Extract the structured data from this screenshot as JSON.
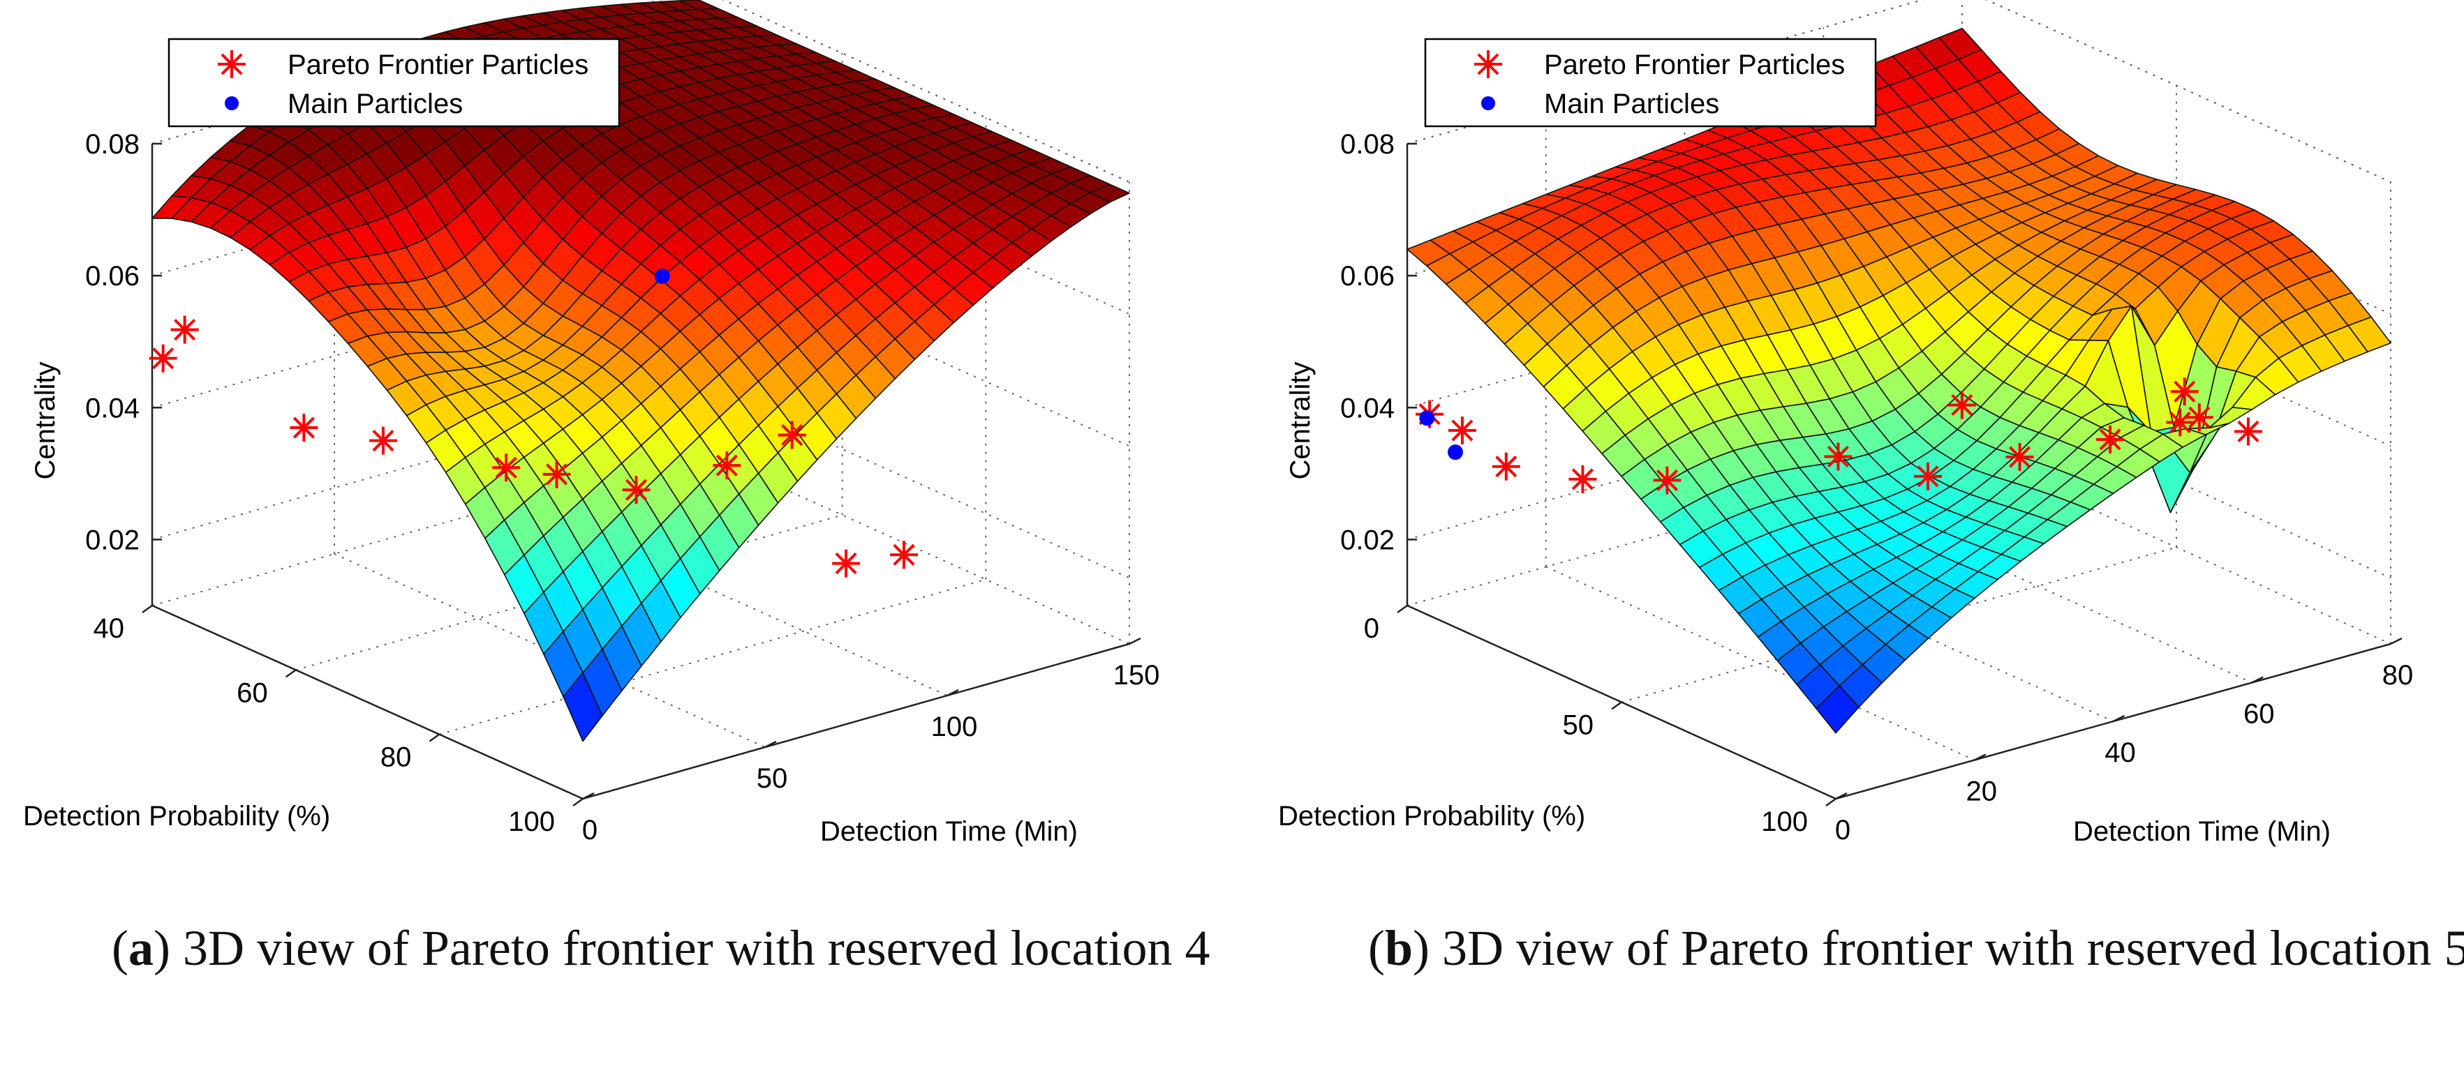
{
  "figure": {
    "captions": [
      {
        "letter": "a",
        "text": ") 3D view of Pareto frontier with reserved location 4"
      },
      {
        "letter": "b",
        "text": ") 3D view of Pareto frontier with reserved location 5"
      }
    ]
  },
  "chart_data": [
    {
      "type": "surface3d",
      "panel": "a",
      "xlabel": "Detection Probability (%)",
      "ylabel": "Detection Time (Min)",
      "zlabel": "Centrality",
      "xlim": [
        40,
        100
      ],
      "ylim": [
        0,
        150
      ],
      "zlim": [
        0.01,
        0.08
      ],
      "x_ticks": [
        40,
        60,
        80,
        100
      ],
      "y_ticks": [
        0,
        50,
        100,
        150
      ],
      "z_ticks": [
        0.02,
        0.04,
        0.06,
        0.08
      ],
      "z_tick_labels": [
        "0.02",
        "0.04",
        "0.06",
        "0.08"
      ],
      "grid": true,
      "colormap": "jet",
      "legend": {
        "position": "top-left",
        "entries": [
          {
            "label": "Pareto Frontier Particles",
            "marker": "asterisk",
            "color": "#ff0000"
          },
          {
            "label": "Main Particles",
            "marker": "dot",
            "color": "#0000ff"
          }
        ]
      },
      "series": [
        {
          "name": "Pareto Frontier Particles",
          "points": [
            [
              40,
              3,
              0.047
            ],
            [
              42,
              5,
              0.052
            ],
            [
              52,
              18,
              0.04
            ],
            [
              60,
              24,
              0.041
            ],
            [
              68,
              42,
              0.038
            ],
            [
              72,
              48,
              0.038
            ],
            [
              78,
              58,
              0.037
            ],
            [
              82,
              75,
              0.04
            ],
            [
              86,
              85,
              0.045
            ],
            [
              92,
              88,
              0.028
            ],
            [
              96,
              96,
              0.03
            ]
          ]
        },
        {
          "name": "Main Particles",
          "points": [
            [
              40,
              140,
              0.038
            ]
          ]
        }
      ]
    },
    {
      "type": "surface3d",
      "panel": "b",
      "xlabel": "Detection Probability (%)",
      "ylabel": "Detection Time (Min)",
      "zlabel": "Centrality",
      "xlim": [
        0,
        100
      ],
      "ylim": [
        0,
        80
      ],
      "zlim": [
        0.01,
        0.08
      ],
      "x_ticks": [
        0,
        50,
        100
      ],
      "y_ticks": [
        0,
        20,
        40,
        60,
        80
      ],
      "z_ticks": [
        0.02,
        0.04,
        0.06,
        0.08
      ],
      "z_tick_labels": [
        "0.02",
        "0.04",
        "0.06",
        "0.08"
      ],
      "grid": true,
      "colormap": "jet",
      "legend": {
        "position": "top-left",
        "entries": [
          {
            "label": "Pareto Frontier Particles",
            "marker": "asterisk",
            "color": "#ff0000"
          },
          {
            "label": "Main Particles",
            "marker": "dot",
            "color": "#0000ff"
          }
        ]
      },
      "series": [
        {
          "name": "Pareto Frontier Particles",
          "points": [
            [
              2,
              2,
              0.039
            ],
            [
              8,
              3,
              0.038
            ],
            [
              15,
              5,
              0.034
            ],
            [
              28,
              8,
              0.035
            ],
            [
              38,
              14,
              0.036
            ],
            [
              52,
              30,
              0.039
            ],
            [
              60,
              38,
              0.036
            ],
            [
              55,
              46,
              0.043
            ],
            [
              62,
              50,
              0.036
            ],
            [
              75,
              55,
              0.041
            ],
            [
              80,
              62,
              0.043
            ],
            [
              78,
              66,
              0.042
            ],
            [
              60,
              75,
              0.038
            ],
            [
              70,
              78,
              0.034
            ]
          ]
        },
        {
          "name": "Main Particles",
          "points": [
            [
              3,
              1,
              0.039
            ],
            [
              8,
              2,
              0.035
            ]
          ]
        }
      ]
    }
  ]
}
